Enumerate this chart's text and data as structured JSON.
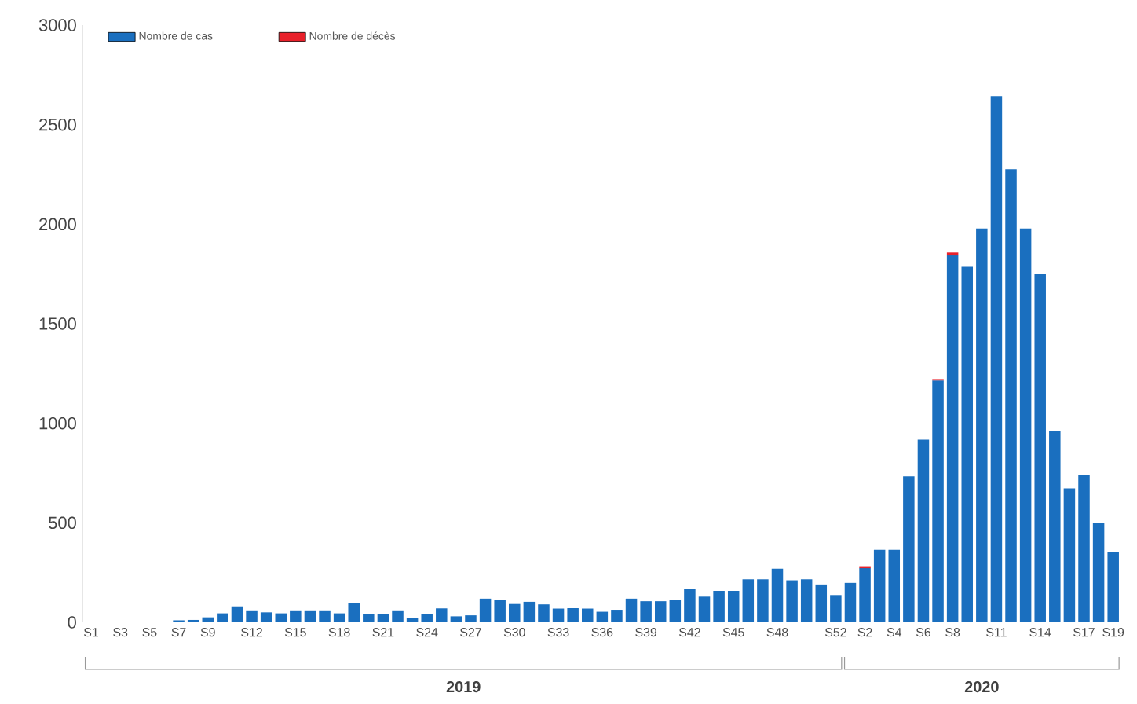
{
  "chart_data": {
    "type": "bar",
    "stacked": true,
    "legend": "top left",
    "categories": [
      "S1",
      null,
      "S3",
      null,
      "S5",
      null,
      "S7",
      null,
      "S9",
      null,
      null,
      "S12",
      null,
      null,
      "S15",
      null,
      null,
      "S18",
      null,
      null,
      "S21",
      null,
      null,
      "S24",
      null,
      null,
      "S27",
      null,
      null,
      "S30",
      null,
      null,
      "S33",
      null,
      null,
      "S36",
      null,
      null,
      "S39",
      null,
      null,
      "S42",
      null,
      null,
      "S45",
      null,
      null,
      "S48",
      null,
      null,
      null,
      "S52",
      null,
      "S2",
      null,
      "S4",
      null,
      "S6",
      null,
      "S8",
      null,
      null,
      "S11",
      null,
      null,
      "S14",
      null,
      null,
      "S17",
      null,
      "S19"
    ],
    "series": [
      {
        "name": "Nombre de cas",
        "color": "#1a6fbf",
        "values": [
          3,
          3,
          3,
          3,
          3,
          3,
          10,
          12,
          25,
          45,
          80,
          60,
          50,
          45,
          60,
          60,
          60,
          45,
          95,
          40,
          40,
          60,
          20,
          40,
          70,
          30,
          35,
          119,
          111,
          92,
          103,
          90,
          69,
          71,
          69,
          53,
          63,
          119,
          106,
          106,
          111,
          169,
          129,
          158,
          158,
          216,
          216,
          269,
          211,
          216,
          190,
          137,
          198,
          272,
          364,
          364,
          733,
          918,
          1215,
          1843,
          1786,
          1979,
          2644,
          2277,
          1979,
          1749,
          963,
          673,
          739,
          501,
          351
        ]
      },
      {
        "name": "Nombre de décès",
        "color": "#e8202a",
        "values": [
          null,
          null,
          null,
          null,
          null,
          null,
          null,
          null,
          null,
          null,
          null,
          null,
          null,
          null,
          null,
          null,
          null,
          null,
          null,
          null,
          null,
          null,
          null,
          null,
          null,
          null,
          null,
          null,
          null,
          null,
          null,
          null,
          null,
          null,
          null,
          null,
          null,
          null,
          null,
          null,
          null,
          null,
          null,
          null,
          null,
          null,
          null,
          null,
          null,
          null,
          null,
          null,
          null,
          10,
          null,
          null,
          null,
          null,
          7,
          15,
          null,
          null,
          null,
          null,
          null,
          null,
          null,
          null,
          null,
          null,
          null
        ]
      }
    ],
    "ylim": [
      0,
      3000
    ],
    "yticks": [
      0,
      500,
      1000,
      1500,
      2000,
      2500,
      3000
    ],
    "annotations": [
      "2019",
      "2020"
    ]
  }
}
